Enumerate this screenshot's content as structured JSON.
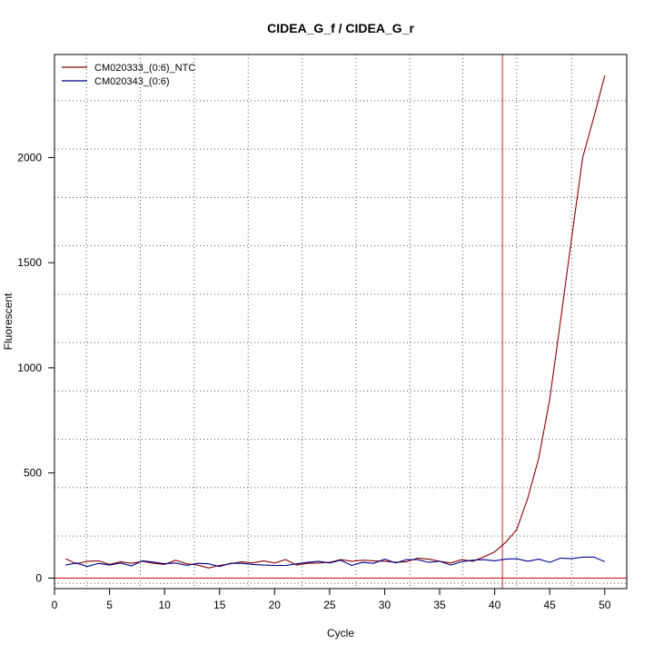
{
  "chart_data": {
    "type": "line",
    "title": "CIDEA_G_f / CIDEA_G_r",
    "xlabel": "Cycle",
    "ylabel": "Fluorescent",
    "xlim": [
      0,
      52
    ],
    "ylim": [
      -50,
      2490
    ],
    "xticks": [
      0,
      5,
      10,
      15,
      20,
      25,
      30,
      35,
      40,
      45,
      50
    ],
    "yticks": [
      0,
      500,
      1000,
      1500,
      2000
    ],
    "grid": true,
    "grid_x_dotted": [
      2.9,
      7.8,
      12.7,
      17.6,
      22.5,
      27.4,
      32.3,
      37.1,
      42.0,
      47.0
    ],
    "grid_y_dotted": [
      -25,
      200,
      430,
      660,
      890,
      1120,
      1350,
      1580,
      1810,
      2040,
      2270
    ],
    "threshold_y": 0,
    "threshold_color": "#cc2222",
    "vline_x": 40.7,
    "vline_color": "#cc2222",
    "legend_position": "top-left",
    "series": [
      {
        "name": "CM020333_(0:6)_NTC",
        "color": "#8b0000",
        "x": [
          1,
          2,
          3,
          4,
          5,
          6,
          7,
          8,
          9,
          10,
          11,
          12,
          13,
          14,
          15,
          16,
          17,
          18,
          19,
          20,
          21,
          22,
          23,
          24,
          25,
          26,
          27,
          28,
          29,
          30,
          31,
          32,
          33,
          34,
          35,
          36,
          37,
          38,
          39,
          40,
          41,
          42,
          43,
          44,
          45,
          46,
          47,
          48,
          49,
          50
        ],
        "values": [
          92,
          68,
          80,
          82,
          65,
          78,
          70,
          80,
          70,
          65,
          85,
          68,
          62,
          48,
          60,
          68,
          78,
          72,
          82,
          72,
          88,
          62,
          70,
          72,
          75,
          88,
          80,
          85,
          82,
          80,
          75,
          78,
          95,
          90,
          80,
          72,
          88,
          80,
          100,
          125,
          170,
          230,
          380,
          570,
          850,
          1230,
          1620,
          2000,
          2190,
          2390
        ]
      },
      {
        "name": "CM020343_(0:6)",
        "color": "#00008b",
        "x": [
          1,
          2,
          3,
          4,
          5,
          6,
          7,
          8,
          9,
          10,
          11,
          12,
          13,
          14,
          15,
          16,
          17,
          18,
          19,
          20,
          21,
          22,
          23,
          24,
          25,
          26,
          27,
          28,
          29,
          30,
          31,
          32,
          33,
          34,
          35,
          36,
          37,
          38,
          39,
          40,
          41,
          42,
          43,
          44,
          45,
          46,
          47,
          48,
          49,
          50
        ],
        "values": [
          62,
          72,
          55,
          70,
          62,
          72,
          58,
          82,
          76,
          68,
          72,
          60,
          70,
          68,
          55,
          70,
          70,
          65,
          62,
          60,
          60,
          68,
          75,
          80,
          72,
          85,
          60,
          75,
          70,
          90,
          72,
          88,
          88,
          75,
          80,
          62,
          78,
          85,
          88,
          82,
          90,
          92,
          80,
          90,
          75,
          95,
          92,
          100,
          100,
          78
        ]
      }
    ]
  }
}
